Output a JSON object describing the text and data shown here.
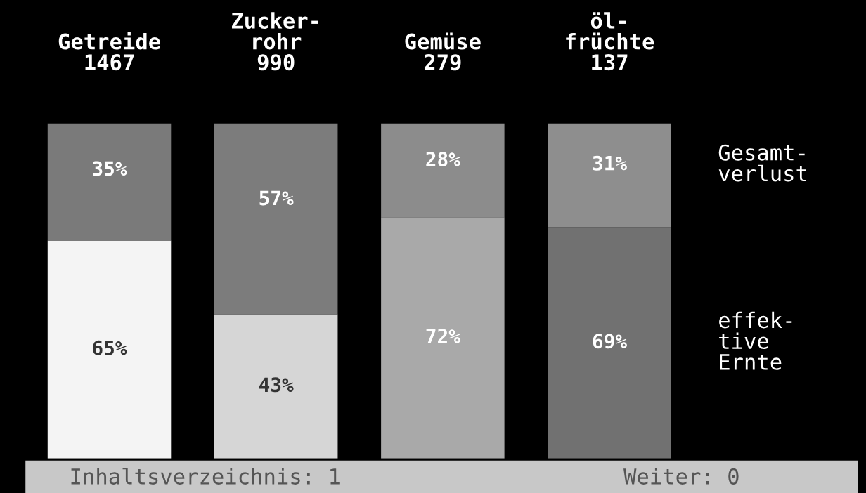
{
  "chart_data": {
    "type": "bar",
    "stacked": true,
    "categories": [
      "Getreide\n1467",
      "Zucker-\nrohr\n990",
      "Gemüse\n279",
      "öl-\nfrüchte\n137"
    ],
    "series": [
      {
        "name": "effek-\ntive\nErnte",
        "colors": [
          "#f4f4f4",
          "#d6d6d6",
          "#a9a9a9",
          "#717171"
        ],
        "values": [
          65,
          43,
          72,
          69
        ],
        "value_labels": [
          "65%",
          "43%",
          "72%",
          "69%"
        ]
      },
      {
        "name": "Gesamt-\nverlust",
        "colors": [
          "#7a7a7a",
          "#7c7c7c",
          "#8c8c8c",
          "#8e8e8e"
        ],
        "values": [
          35,
          57,
          28,
          31
        ],
        "value_labels": [
          "35%",
          "57%",
          "28%",
          "31%"
        ]
      }
    ],
    "tick_labels": "x",
    "grid": false,
    "legend": false,
    "annotations": [
      "Inhaltsverzeichnis: 1",
      "Weiter: 0"
    ]
  }
}
